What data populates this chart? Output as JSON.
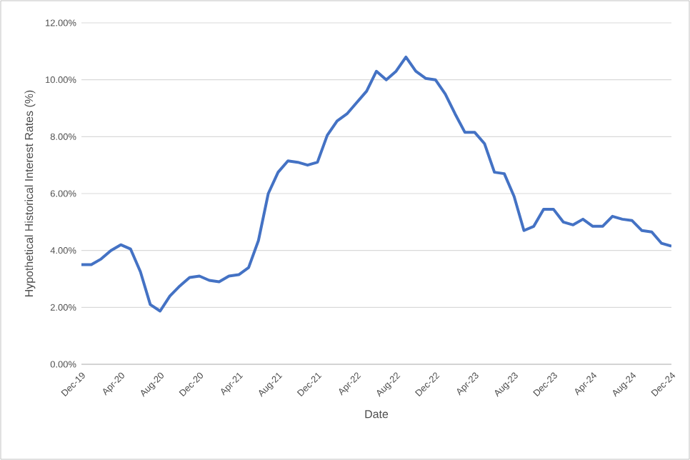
{
  "chart_data": {
    "type": "line",
    "xlabel": "Date",
    "ylabel": "Hypothetical Historical Interest Rates (%)",
    "categories": [
      "Dec-19",
      null,
      null,
      null,
      "Apr-20",
      null,
      null,
      null,
      "Aug-20",
      null,
      null,
      null,
      "Dec-20",
      null,
      null,
      null,
      "Apr-21",
      null,
      null,
      null,
      "Aug-21",
      null,
      null,
      null,
      "Dec-21",
      null,
      null,
      null,
      "Apr-22",
      null,
      null,
      null,
      "Aug-22",
      null,
      null,
      null,
      "Dec-22",
      null,
      null,
      null,
      "Apr-23",
      null,
      null,
      null,
      "Aug-23",
      null,
      null,
      null,
      "Dec-23",
      null,
      null,
      null,
      "Apr-24",
      null,
      null,
      null,
      "Aug-24",
      null,
      null,
      null,
      "Dec-24"
    ],
    "series": [
      {
        "color": "#4472c4",
        "values": [
          3.5,
          3.5,
          3.7,
          4.0,
          4.2,
          4.05,
          3.25,
          2.1,
          1.87,
          2.4,
          2.75,
          3.05,
          3.1,
          2.95,
          2.9,
          3.1,
          3.15,
          3.4,
          4.35,
          6.0,
          6.75,
          7.15,
          7.1,
          7.0,
          7.1,
          8.05,
          8.55,
          8.8,
          9.2,
          9.6,
          10.3,
          10.0,
          10.3,
          10.8,
          10.3,
          10.05,
          10.0,
          9.5,
          8.8,
          8.15,
          8.15,
          7.75,
          6.75,
          6.7,
          5.9,
          4.7,
          4.85,
          5.45,
          5.45,
          5.0,
          4.9,
          5.1,
          4.85,
          4.85,
          5.2,
          5.1,
          5.05,
          4.7,
          4.65,
          4.25,
          4.15
        ]
      }
    ],
    "ylim": [
      0,
      12
    ],
    "yticks": [
      {
        "value": 0,
        "label": "0.00%"
      },
      {
        "value": 2,
        "label": "2.00%"
      },
      {
        "value": 4,
        "label": "4.00%"
      },
      {
        "value": 6,
        "label": "6.00%"
      },
      {
        "value": 8,
        "label": "8.00%"
      },
      {
        "value": 10,
        "label": "10.00%"
      },
      {
        "value": 12,
        "label": "12.00%"
      }
    ],
    "grid": "y",
    "marker": "none",
    "line_style": "solid"
  }
}
